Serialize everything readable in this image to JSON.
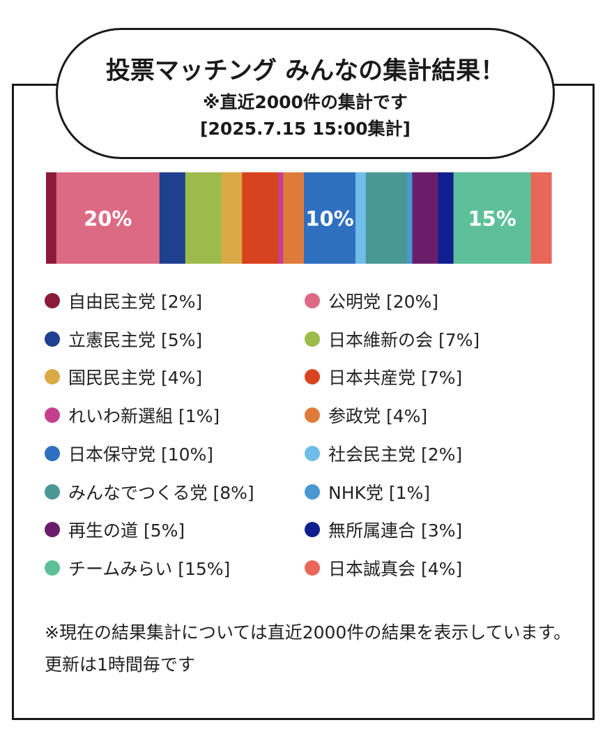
{
  "header": {
    "title": "投票マッチング みんなの集計結果！",
    "subtitle": "※直近2000件の集計です",
    "date": "[2025.7.15 15:00集計]"
  },
  "chart_data": {
    "type": "bar",
    "orientation": "horizontal-stacked",
    "title": "投票マッチング みんなの集計結果！",
    "unit": "%",
    "total": 100,
    "categories": [
      "自由民主党",
      "公明党",
      "立憲民主党",
      "日本維新の会",
      "国民民主党",
      "日本共産党",
      "れいわ新選組",
      "参政党",
      "日本保守党",
      "社会民主党",
      "みんなでつくる党",
      "NHK党",
      "再生の道",
      "無所属連合",
      "チームみらい",
      "日本誠真会"
    ],
    "values": [
      2,
      20,
      5,
      7,
      4,
      7,
      1,
      4,
      10,
      2,
      8,
      1,
      5,
      3,
      15,
      4
    ],
    "colors": [
      "#8b1a3a",
      "#dd6a84",
      "#1f3f8f",
      "#9dbb4a",
      "#d9aa45",
      "#d8431f",
      "#c53f8f",
      "#e07a3b",
      "#2f6fc0",
      "#6fbde8",
      "#4a9894",
      "#4a98d0",
      "#6b1d6b",
      "#0f1f8f",
      "#5ec09a",
      "#e9665a"
    ],
    "data_labels": [
      {
        "category": "公明党",
        "text": "20%"
      },
      {
        "category": "日本保守党",
        "text": "10%"
      },
      {
        "category": "チームみらい",
        "text": "15%"
      }
    ]
  },
  "legend": [
    {
      "label": "自由民主党 [2%]",
      "color": "#8b1a3a"
    },
    {
      "label": "公明党 [20%]",
      "color": "#dd6a84"
    },
    {
      "label": "立憲民主党 [5%]",
      "color": "#1f3f8f"
    },
    {
      "label": "日本維新の会 [7%]",
      "color": "#9dbb4a"
    },
    {
      "label": "国民民主党 [4%]",
      "color": "#d9aa45"
    },
    {
      "label": "日本共産党 [7%]",
      "color": "#d8431f"
    },
    {
      "label": "れいわ新選組 [1%]",
      "color": "#c53f8f"
    },
    {
      "label": "参政党 [4%]",
      "color": "#e07a3b"
    },
    {
      "label": "日本保守党 [10%]",
      "color": "#2f6fc0"
    },
    {
      "label": "社会民主党 [2%]",
      "color": "#6fbde8"
    },
    {
      "label": "みんなでつくる党 [8%]",
      "color": "#4a9894"
    },
    {
      "label": "NHK党 [1%]",
      "color": "#4a98d0"
    },
    {
      "label": "再生の道 [5%]",
      "color": "#6b1d6b"
    },
    {
      "label": "無所属連合 [3%]",
      "color": "#0f1f8f"
    },
    {
      "label": "チームみらい [15%]",
      "color": "#5ec09a"
    },
    {
      "label": "日本誠真会 [4%]",
      "color": "#e9665a"
    }
  ],
  "footnote": "※現在の結果集計については直近2000件の結果を表示しています。更新は1時間毎です"
}
